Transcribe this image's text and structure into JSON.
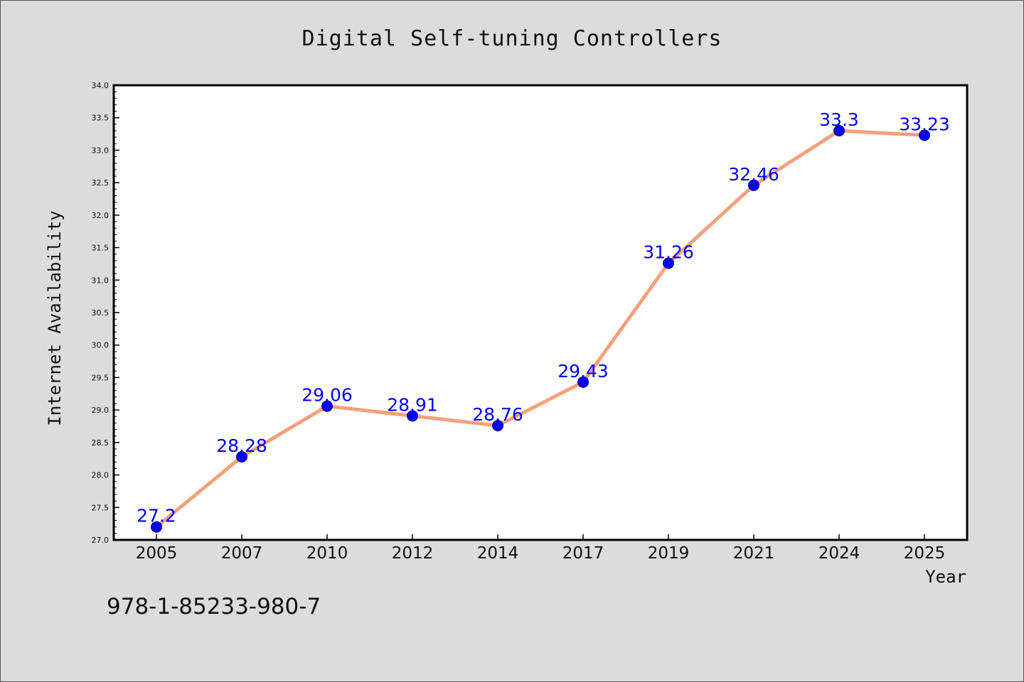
{
  "chart_data": {
    "type": "line",
    "title": "Digital Self-tuning Controllers",
    "xlabel": "Year",
    "ylabel": "Internet Availability",
    "categories": [
      "2005",
      "2007",
      "2010",
      "2012",
      "2014",
      "2017",
      "2019",
      "2021",
      "2024",
      "2025"
    ],
    "series": [
      {
        "values": [
          27.2,
          28.28,
          29.06,
          28.91,
          28.76,
          29.43,
          31.26,
          32.46,
          33.3,
          33.23
        ]
      }
    ],
    "data_labels": [
      "27.2",
      "28.28",
      "29.06",
      "28.91",
      "28.76",
      "29.43",
      "31.26",
      "32.46",
      "33.3",
      "33.23"
    ],
    "ylim": [
      27.0,
      34.0
    ],
    "yticks": [
      "27.0",
      "27.5",
      "28.0",
      "28.5",
      "29.0",
      "29.5",
      "30.0",
      "30.5",
      "31.0",
      "31.5",
      "32.0",
      "32.5",
      "33.0",
      "33.5",
      "34.0"
    ],
    "grid": false,
    "line_color": "#f4a07c",
    "marker_color": "#0000ee",
    "label_color": "#0000ff",
    "background_color": "#dcdcdc",
    "plot_background_color": "#ffffff"
  },
  "footnote": "978-1-85233-980-7"
}
